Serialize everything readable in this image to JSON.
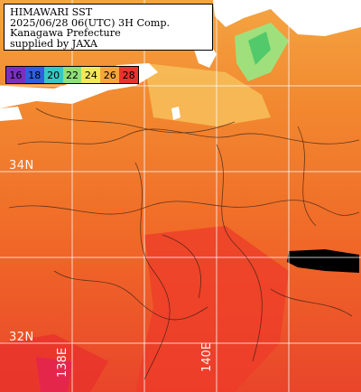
{
  "header": {
    "line1": "HIMAWARI SST",
    "line2": "2025/06/28 06(UTC) 3H Comp.",
    "line3": "Kanagawa Prefecture",
    "line4": "supplied by JAXA"
  },
  "legend": {
    "entries": [
      {
        "label": "16",
        "color": "#7b2fbf"
      },
      {
        "label": "18",
        "color": "#2f5fe0"
      },
      {
        "label": "20",
        "color": "#36c7c4"
      },
      {
        "label": "22",
        "color": "#8fe07a"
      },
      {
        "label": "24",
        "color": "#f2e85a"
      },
      {
        "label": "26",
        "color": "#f5a63a"
      },
      {
        "label": "28",
        "color": "#e8332e"
      }
    ]
  },
  "grid": {
    "lat_labels": [
      "34N",
      "32N"
    ],
    "lon_labels": [
      "138E",
      "140E"
    ]
  },
  "colors": {
    "land": "#ffffff",
    "cloud": "#000000",
    "sst_warm": "#f0602a",
    "sst_mid": "#f28b2e",
    "sst_cool": "#f7c25a",
    "sst_cold": "#8fe07a"
  }
}
